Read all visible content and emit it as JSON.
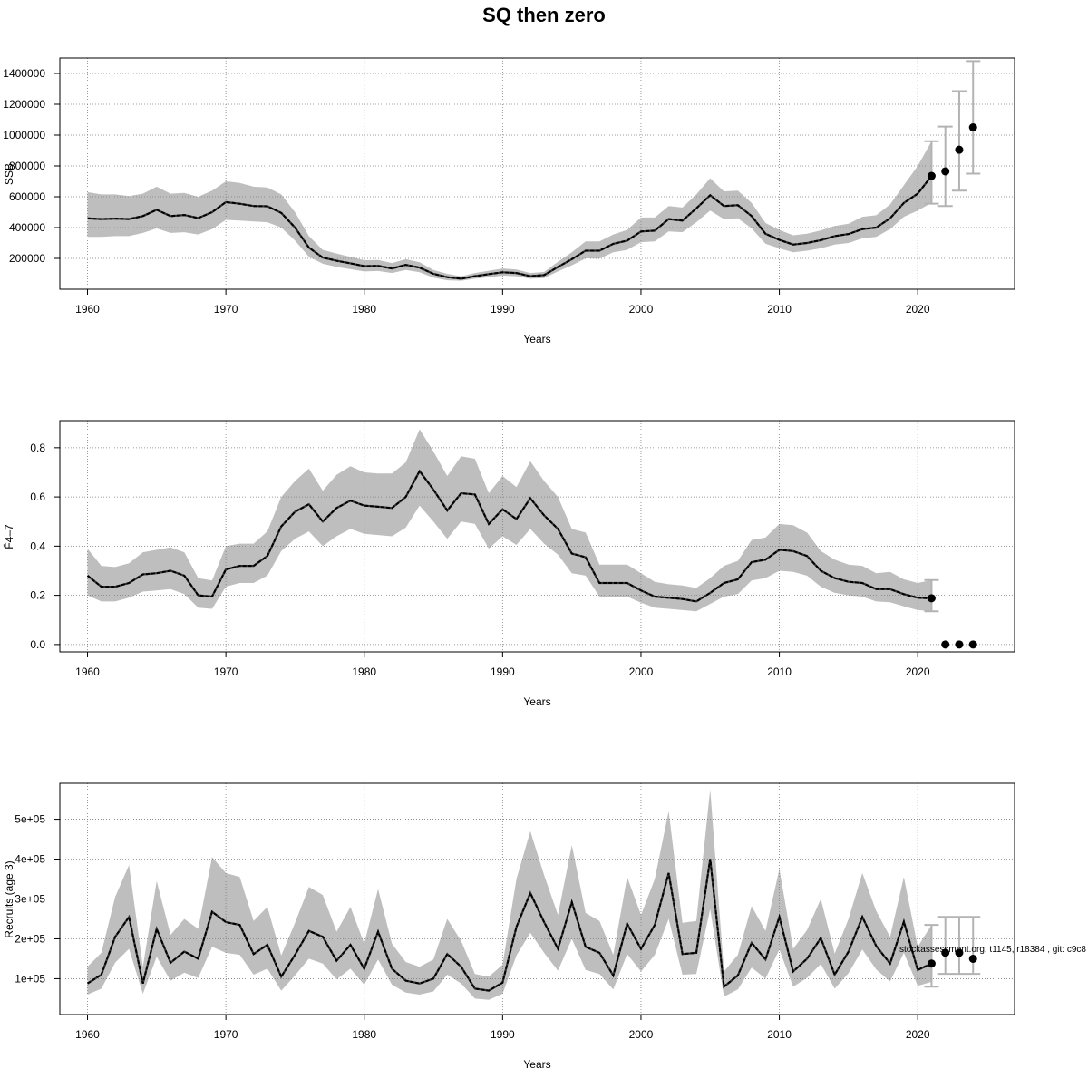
{
  "title": "SQ then zero",
  "footnote": "stockassessment.org, t1145, r18384 , git: c9c8",
  "colors": {
    "band": "#bebebe",
    "line": "#000000",
    "whisker": "#b3b3b3",
    "grid": "#7f7f7f"
  },
  "chart_data": [
    {
      "type": "line",
      "ylabel": "SSB",
      "xlabel": "Years",
      "xlim": [
        1958,
        2027
      ],
      "ylim": [
        0,
        1500000
      ],
      "xticks": [
        1960,
        1970,
        1980,
        1990,
        2000,
        2010,
        2020
      ],
      "yticks": [
        200000,
        400000,
        600000,
        800000,
        1000000,
        1200000,
        1400000
      ],
      "ytick_labels": [
        "200000",
        "400000",
        "600000",
        "800000",
        "1000000",
        "1200000",
        "1400000"
      ],
      "grid": true,
      "years": [
        1960,
        1961,
        1962,
        1963,
        1964,
        1965,
        1966,
        1967,
        1968,
        1969,
        1970,
        1971,
        1972,
        1973,
        1974,
        1975,
        1976,
        1977,
        1978,
        1979,
        1980,
        1981,
        1982,
        1983,
        1984,
        1985,
        1986,
        1987,
        1988,
        1989,
        1990,
        1991,
        1992,
        1993,
        1994,
        1995,
        1996,
        1997,
        1998,
        1999,
        2000,
        2001,
        2002,
        2003,
        2004,
        2005,
        2006,
        2007,
        2008,
        2009,
        2010,
        2011,
        2012,
        2013,
        2014,
        2015,
        2016,
        2017,
        2018,
        2019,
        2020,
        2021
      ],
      "estimate": [
        460000,
        455000,
        458000,
        455000,
        475000,
        515000,
        475000,
        482000,
        462000,
        500000,
        565000,
        555000,
        540000,
        538000,
        495000,
        400000,
        270000,
        205000,
        185000,
        168000,
        150000,
        152000,
        135000,
        158000,
        140000,
        100000,
        78000,
        68000,
        85000,
        98000,
        110000,
        105000,
        85000,
        92000,
        145000,
        195000,
        250000,
        250000,
        295000,
        315000,
        375000,
        380000,
        455000,
        445000,
        525000,
        610000,
        540000,
        545000,
        475000,
        360000,
        320000,
        290000,
        300000,
        318000,
        345000,
        358000,
        390000,
        400000,
        460000,
        560000,
        620000,
        735000
      ],
      "lower": [
        340000,
        340000,
        345000,
        345000,
        365000,
        395000,
        365000,
        370000,
        355000,
        390000,
        450000,
        445000,
        440000,
        435000,
        400000,
        315000,
        210000,
        165000,
        145000,
        130000,
        115000,
        118000,
        105000,
        125000,
        110000,
        75000,
        58000,
        55000,
        68000,
        78000,
        88000,
        85000,
        68000,
        72000,
        115000,
        155000,
        200000,
        198000,
        240000,
        255000,
        305000,
        310000,
        375000,
        370000,
        435000,
        510000,
        455000,
        460000,
        395000,
        295000,
        265000,
        240000,
        250000,
        265000,
        290000,
        300000,
        330000,
        340000,
        390000,
        470000,
        510000,
        560000
      ],
      "upper": [
        630000,
        615000,
        615000,
        605000,
        620000,
        665000,
        620000,
        625000,
        600000,
        640000,
        700000,
        690000,
        665000,
        660000,
        615000,
        500000,
        345000,
        255000,
        232000,
        210000,
        188000,
        190000,
        170000,
        195000,
        175000,
        125000,
        100000,
        84000,
        105000,
        120000,
        135000,
        128000,
        105000,
        112000,
        178000,
        240000,
        310000,
        310000,
        355000,
        385000,
        465000,
        465000,
        540000,
        530000,
        615000,
        720000,
        635000,
        640000,
        560000,
        430000,
        385000,
        350000,
        360000,
        382000,
        410000,
        425000,
        470000,
        480000,
        550000,
        675000,
        800000,
        960000
      ],
      "forecast": {
        "years": [
          2021,
          2022,
          2023,
          2024
        ],
        "median": [
          735000,
          765000,
          905000,
          1050000
        ],
        "low": [
          555000,
          540000,
          640000,
          750000
        ],
        "high": [
          960000,
          1055000,
          1285000,
          1480000
        ]
      }
    },
    {
      "type": "line",
      "ylabel": "F̄4–7",
      "xlabel": "Years",
      "xlim": [
        1958,
        2027
      ],
      "ylim": [
        -0.03,
        0.91
      ],
      "xticks": [
        1960,
        1970,
        1980,
        1990,
        2000,
        2010,
        2020
      ],
      "yticks": [
        0.0,
        0.2,
        0.4,
        0.6,
        0.8
      ],
      "ytick_labels": [
        "0.0",
        "0.2",
        "0.4",
        "0.6",
        "0.8"
      ],
      "grid": true,
      "years": [
        1960,
        1961,
        1962,
        1963,
        1964,
        1965,
        1966,
        1967,
        1968,
        1969,
        1970,
        1971,
        1972,
        1973,
        1974,
        1975,
        1976,
        1977,
        1978,
        1979,
        1980,
        1981,
        1982,
        1983,
        1984,
        1985,
        1986,
        1987,
        1988,
        1989,
        1990,
        1991,
        1992,
        1993,
        1994,
        1995,
        1996,
        1997,
        1998,
        1999,
        2000,
        2001,
        2002,
        2003,
        2004,
        2005,
        2006,
        2007,
        2008,
        2009,
        2010,
        2011,
        2012,
        2013,
        2014,
        2015,
        2016,
        2017,
        2018,
        2019,
        2020,
        2021
      ],
      "estimate": [
        0.28,
        0.235,
        0.235,
        0.25,
        0.285,
        0.29,
        0.3,
        0.28,
        0.2,
        0.195,
        0.305,
        0.32,
        0.32,
        0.36,
        0.48,
        0.54,
        0.57,
        0.5,
        0.555,
        0.585,
        0.565,
        0.56,
        0.555,
        0.6,
        0.705,
        0.63,
        0.545,
        0.615,
        0.61,
        0.49,
        0.55,
        0.51,
        0.595,
        0.525,
        0.47,
        0.37,
        0.355,
        0.25,
        0.25,
        0.25,
        0.22,
        0.195,
        0.19,
        0.185,
        0.175,
        0.21,
        0.25,
        0.265,
        0.335,
        0.345,
        0.385,
        0.38,
        0.36,
        0.3,
        0.27,
        0.255,
        0.25,
        0.225,
        0.225,
        0.205,
        0.19,
        0.188
      ],
      "lower": [
        0.2,
        0.175,
        0.175,
        0.19,
        0.215,
        0.22,
        0.225,
        0.205,
        0.15,
        0.145,
        0.235,
        0.25,
        0.25,
        0.28,
        0.38,
        0.43,
        0.46,
        0.4,
        0.44,
        0.47,
        0.45,
        0.445,
        0.44,
        0.475,
        0.565,
        0.5,
        0.43,
        0.5,
        0.49,
        0.39,
        0.44,
        0.405,
        0.47,
        0.41,
        0.365,
        0.29,
        0.28,
        0.195,
        0.195,
        0.195,
        0.17,
        0.15,
        0.145,
        0.14,
        0.135,
        0.165,
        0.195,
        0.205,
        0.26,
        0.27,
        0.3,
        0.295,
        0.28,
        0.235,
        0.21,
        0.2,
        0.195,
        0.175,
        0.172,
        0.155,
        0.14,
        0.135
      ],
      "upper": [
        0.39,
        0.32,
        0.315,
        0.33,
        0.375,
        0.385,
        0.395,
        0.375,
        0.27,
        0.26,
        0.4,
        0.41,
        0.41,
        0.46,
        0.6,
        0.665,
        0.715,
        0.625,
        0.69,
        0.725,
        0.7,
        0.695,
        0.695,
        0.74,
        0.875,
        0.785,
        0.685,
        0.765,
        0.755,
        0.615,
        0.685,
        0.64,
        0.745,
        0.665,
        0.6,
        0.47,
        0.455,
        0.325,
        0.325,
        0.325,
        0.29,
        0.255,
        0.245,
        0.24,
        0.23,
        0.27,
        0.32,
        0.34,
        0.425,
        0.435,
        0.49,
        0.485,
        0.455,
        0.38,
        0.345,
        0.325,
        0.32,
        0.29,
        0.295,
        0.265,
        0.25,
        0.262
      ],
      "forecast": {
        "years": [
          2021,
          2022,
          2023,
          2024
        ],
        "median": [
          0.188,
          0.0,
          0.0,
          0.0
        ],
        "low": [
          0.135,
          0.0,
          0.0,
          0.0
        ],
        "high": [
          0.262,
          0.0,
          0.0,
          0.0
        ]
      }
    },
    {
      "type": "line",
      "ylabel": "Recruits (age 3)",
      "xlabel": "Years",
      "xlim": [
        1958,
        2027
      ],
      "ylim": [
        10000,
        590000
      ],
      "xticks": [
        1960,
        1970,
        1980,
        1990,
        2000,
        2010,
        2020
      ],
      "yticks": [
        100000,
        200000,
        300000,
        400000,
        500000
      ],
      "ytick_labels": [
        "1e+05",
        "2e+05",
        "3e+05",
        "4e+05",
        "5e+05"
      ],
      "grid": true,
      "years": [
        1960,
        1961,
        1962,
        1963,
        1964,
        1965,
        1966,
        1967,
        1968,
        1969,
        1970,
        1971,
        1972,
        1973,
        1974,
        1975,
        1976,
        1977,
        1978,
        1979,
        1980,
        1981,
        1982,
        1983,
        1984,
        1985,
        1986,
        1987,
        1988,
        1989,
        1990,
        1991,
        1992,
        1993,
        1994,
        1995,
        1996,
        1997,
        1998,
        1999,
        2000,
        2001,
        2002,
        2003,
        2004,
        2005,
        2006,
        2007,
        2008,
        2009,
        2010,
        2011,
        2012,
        2013,
        2014,
        2015,
        2016,
        2017,
        2018,
        2019,
        2020,
        2021
      ],
      "estimate": [
        88000,
        110000,
        205000,
        255000,
        88000,
        225000,
        140000,
        168000,
        150000,
        268000,
        242000,
        235000,
        162000,
        185000,
        105000,
        160000,
        220000,
        205000,
        145000,
        185000,
        125000,
        218000,
        125000,
        95000,
        88000,
        100000,
        162000,
        130000,
        75000,
        70000,
        90000,
        230000,
        315000,
        242000,
        175000,
        292000,
        180000,
        165000,
        108000,
        238000,
        175000,
        235000,
        365000,
        162000,
        165000,
        400000,
        80000,
        108000,
        190000,
        148000,
        255000,
        118000,
        150000,
        202000,
        110000,
        168000,
        255000,
        182000,
        138000,
        243000,
        122000,
        138000
      ],
      "lower": [
        60000,
        75000,
        140000,
        175000,
        62000,
        155000,
        95000,
        115000,
        102000,
        180000,
        165000,
        160000,
        110000,
        125000,
        70000,
        108000,
        150000,
        138000,
        98000,
        125000,
        85000,
        148000,
        85000,
        65000,
        60000,
        68000,
        110000,
        88000,
        50000,
        47000,
        62000,
        158000,
        215000,
        165000,
        120000,
        200000,
        122000,
        112000,
        73000,
        162000,
        118000,
        160000,
        250000,
        110000,
        112000,
        275000,
        55000,
        73000,
        128000,
        100000,
        173000,
        80000,
        102000,
        137000,
        75000,
        114000,
        173000,
        123000,
        93000,
        165000,
        82000,
        92000
      ],
      "upper": [
        130000,
        165000,
        305000,
        385000,
        130000,
        345000,
        210000,
        250000,
        225000,
        405000,
        365000,
        355000,
        245000,
        280000,
        158000,
        240000,
        330000,
        310000,
        218000,
        280000,
        188000,
        325000,
        188000,
        142000,
        130000,
        148000,
        250000,
        195000,
        112000,
        105000,
        135000,
        350000,
        470000,
        360000,
        260000,
        435000,
        265000,
        245000,
        160000,
        355000,
        260000,
        350000,
        520000,
        240000,
        245000,
        575000,
        118000,
        160000,
        282000,
        220000,
        375000,
        175000,
        222000,
        300000,
        163000,
        250000,
        365000,
        270000,
        205000,
        355000,
        180000,
        235000
      ],
      "forecast": {
        "years": [
          2021,
          2022,
          2023,
          2024
        ],
        "median": [
          138000,
          165000,
          165000,
          150000
        ],
        "low": [
          80000,
          112000,
          112000,
          112000
        ],
        "high": [
          235000,
          255000,
          255000,
          255000
        ]
      }
    }
  ]
}
